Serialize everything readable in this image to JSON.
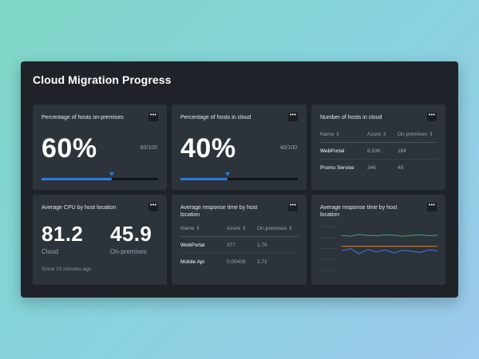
{
  "dashboard": {
    "title": "Cloud Migration Progress"
  },
  "menu_glyph": "•••",
  "onprem_card": {
    "title": "Percentage of hosts on-premises",
    "value": "60%",
    "ratio": "60/100",
    "progress": 0.6
  },
  "cloud_card": {
    "title": "Percentage of hosts in cloud",
    "value": "40%",
    "ratio": "40/100",
    "progress": 0.4
  },
  "hosts_cloud_card": {
    "title": "Number of hosts in cloud",
    "columns": [
      "Name",
      "Azure",
      "On-premises"
    ],
    "rows": [
      {
        "name": "WebPortal",
        "azure": "8.53K",
        "onprem": "184"
      },
      {
        "name": "Promo Service",
        "azure": "346",
        "onprem": "48"
      }
    ]
  },
  "cpu_card": {
    "title": "Average CPU by host location",
    "cloud_value": "81.2",
    "cloud_label": "Cloud",
    "onprem_value": "45.9",
    "onprem_label": "On-premises",
    "since": "Since 10 minutes ago"
  },
  "response_table_card": {
    "title": "Average response time by host location",
    "columns": [
      "Name",
      "Azure",
      "On-premises"
    ],
    "rows": [
      {
        "name": "WebPortal",
        "azure": "377",
        "onprem": "1.76"
      },
      {
        "name": "Mobile Api",
        "azure": "0.00409",
        "onprem": "1.71"
      }
    ]
  },
  "response_chart_card": {
    "title": "Average response time by host location",
    "colors": {
      "green": "#3ba776",
      "orange": "#d9822b",
      "blue": "#3b7fe0",
      "grid": "#3e454d"
    },
    "chart_data": {
      "type": "line",
      "grid": true,
      "series": [
        {
          "color": "green",
          "values": [
            0.8,
            0.78,
            0.82,
            0.8,
            0.79,
            0.81,
            0.8,
            0.78,
            0.8,
            0.81,
            0.79,
            0.8
          ]
        },
        {
          "color": "orange",
          "values": [
            0.55,
            0.55,
            0.55,
            0.55,
            0.55,
            0.55,
            0.55,
            0.55,
            0.55,
            0.55,
            0.55,
            0.55
          ]
        },
        {
          "color": "blue",
          "values": [
            0.45,
            0.5,
            0.38,
            0.48,
            0.42,
            0.47,
            0.4,
            0.46,
            0.44,
            0.41,
            0.47,
            0.45
          ]
        }
      ]
    }
  }
}
